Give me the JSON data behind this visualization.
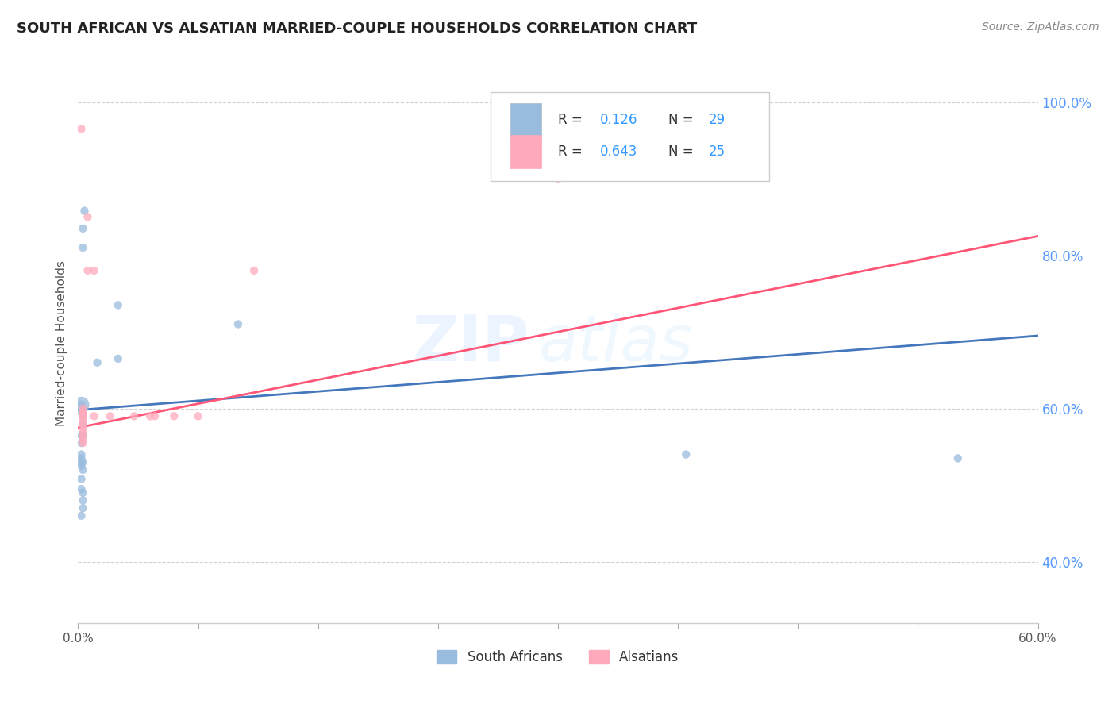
{
  "title": "SOUTH AFRICAN VS ALSATIAN MARRIED-COUPLE HOUSEHOLDS CORRELATION CHART",
  "source": "Source: ZipAtlas.com",
  "xlabel_south_african": "South Africans",
  "xlabel_alsatian": "Alsatians",
  "ylabel": "Married-couple Households",
  "watermark_zip": "ZIP",
  "watermark_atlas": "atlas",
  "legend_r1_val": "0.126",
  "legend_n1_val": "29",
  "legend_r2_val": "0.643",
  "legend_n2_val": "25",
  "blue_color": "#99BBDD",
  "pink_color": "#FFAABB",
  "trend_blue": "#4477BB",
  "trend_pink": "#FF5577",
  "value_color": "#3399FF",
  "label_color": "#333333",
  "ytick_color": "#5599FF",
  "xmin": 0.0,
  "xmax": 0.6,
  "ymin": 0.32,
  "ymax": 1.05,
  "blue_x": [
    0.002,
    0.004,
    0.003,
    0.003,
    0.002,
    0.002,
    0.003,
    0.003,
    0.003,
    0.002,
    0.002,
    0.002,
    0.002,
    0.002,
    0.003,
    0.002,
    0.003,
    0.002,
    0.002,
    0.003,
    0.003,
    0.003,
    0.002,
    0.012,
    0.025,
    0.025,
    0.1,
    0.38,
    0.55
  ],
  "blue_y": [
    0.605,
    0.858,
    0.835,
    0.81,
    0.605,
    0.595,
    0.595,
    0.58,
    0.565,
    0.565,
    0.555,
    0.54,
    0.535,
    0.53,
    0.53,
    0.525,
    0.52,
    0.508,
    0.495,
    0.49,
    0.48,
    0.47,
    0.46,
    0.66,
    0.665,
    0.735,
    0.71,
    0.54,
    0.535
  ],
  "blue_sizes": [
    200,
    50,
    50,
    50,
    50,
    50,
    50,
    50,
    50,
    50,
    50,
    50,
    50,
    50,
    50,
    50,
    50,
    50,
    50,
    50,
    50,
    50,
    50,
    50,
    50,
    50,
    50,
    50,
    50
  ],
  "pink_x": [
    0.002,
    0.003,
    0.003,
    0.003,
    0.003,
    0.003,
    0.003,
    0.003,
    0.003,
    0.003,
    0.003,
    0.003,
    0.003,
    0.006,
    0.006,
    0.01,
    0.01,
    0.02,
    0.035,
    0.045,
    0.048,
    0.06,
    0.075,
    0.11,
    0.3
  ],
  "pink_y": [
    0.965,
    0.6,
    0.595,
    0.595,
    0.59,
    0.59,
    0.585,
    0.58,
    0.575,
    0.57,
    0.565,
    0.56,
    0.555,
    0.85,
    0.78,
    0.78,
    0.59,
    0.59,
    0.59,
    0.59,
    0.59,
    0.59,
    0.59,
    0.78,
    0.9
  ],
  "pink_sizes": [
    50,
    50,
    50,
    50,
    50,
    50,
    50,
    50,
    50,
    50,
    50,
    50,
    50,
    50,
    50,
    50,
    50,
    50,
    50,
    50,
    50,
    50,
    50,
    50,
    50
  ],
  "blue_trend_x0": 0.0,
  "blue_trend_x1": 0.6,
  "blue_trend_y0": 0.598,
  "blue_trend_y1": 0.695,
  "pink_trend_x0": 0.0,
  "pink_trend_x1": 0.6,
  "pink_trend_y0": 0.575,
  "pink_trend_y1": 0.825,
  "yticks": [
    0.4,
    0.6,
    0.8,
    1.0
  ],
  "ytick_labels": [
    "40.0%",
    "60.0%",
    "80.0%",
    "100.0%"
  ],
  "xtick_positions": [
    0.0,
    0.075,
    0.15,
    0.225,
    0.3,
    0.375,
    0.45,
    0.525,
    0.6
  ],
  "xtick_labels_shown": [
    "0.0%",
    "",
    "",
    "",
    "",
    "",
    "",
    "",
    "60.0%"
  ],
  "grid_color": "#CCCCCC",
  "spine_color": "#CCCCCC"
}
